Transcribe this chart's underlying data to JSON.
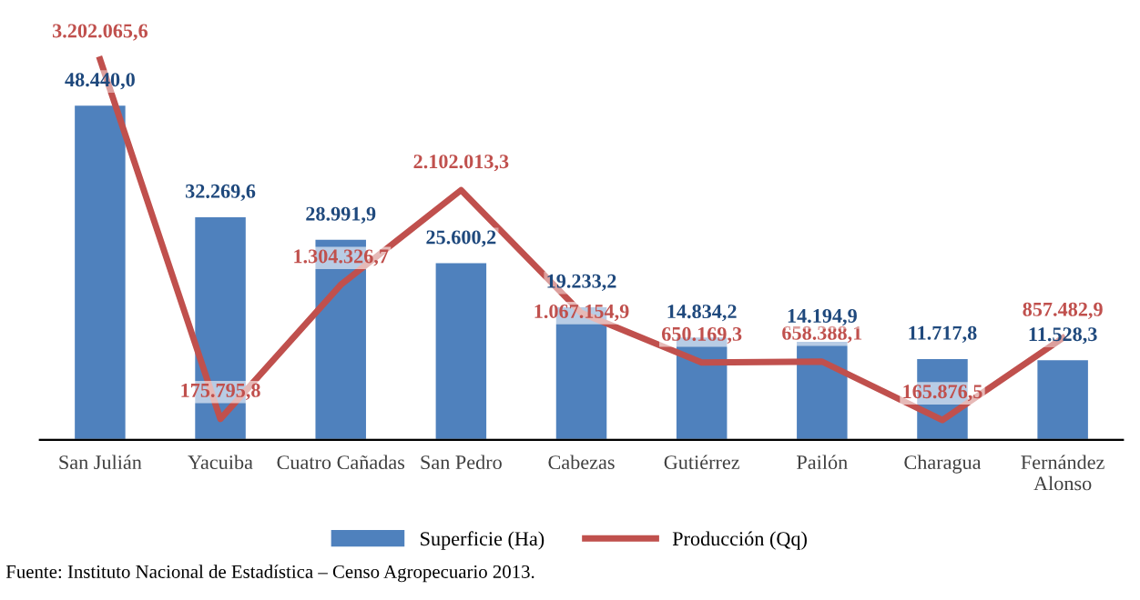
{
  "chart_data": {
    "type": "bar",
    "categories": [
      "San Julián",
      "Yacuiba",
      "Cuatro Cañadas",
      "San Pedro",
      "Cabezas",
      "Gutiérrez",
      "Pailón",
      "Charagua",
      "Fernández\nAlonso"
    ],
    "series": [
      {
        "name": "Superficie (Ha)",
        "color": "#4f81bd",
        "values": [
          48440.0,
          32269.6,
          28991.9,
          25600.2,
          19233.2,
          14834.2,
          14194.9,
          11717.8,
          11528.3
        ],
        "value_labels": [
          "48.440,0",
          "32.269,6",
          "28.991,9",
          "25.600,2",
          "19.233,2",
          "14.834,2",
          "14.194,9",
          "11.717,8",
          "11.528,3"
        ]
      },
      {
        "name": "Producción (Qq)",
        "type": "line",
        "axis": "y2",
        "color": "#c0504d",
        "values": [
          3202065.6,
          175795.8,
          1304326.7,
          2102013.3,
          1067154.9,
          650169.3,
          658388.1,
          165876.5,
          857482.9
        ],
        "value_labels": [
          "3.202.065,6",
          "175.795,8",
          "1.304.326,7",
          "2.102.013,3",
          "1.067.154,9",
          "650.169,3",
          "658.388,1",
          "165.876,5",
          "857.482,9"
        ]
      }
    ],
    "legend": "bottom",
    "grid": false,
    "marker": "none",
    "line_style": "solid",
    "annotations": [
      "Fuente: Instituto Nacional de Estadística – Censo Agropecuario 2013."
    ]
  }
}
